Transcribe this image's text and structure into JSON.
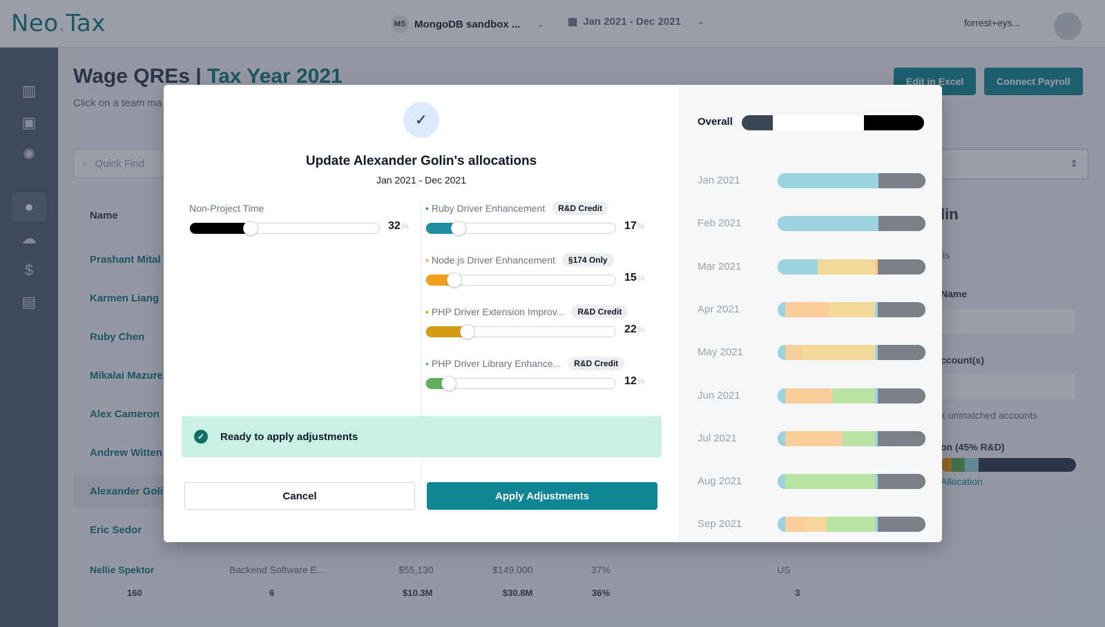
{
  "app": {
    "logo_main": "Neo",
    "logo_dot": ".",
    "logo_end": "Tax",
    "org_badge": "MS",
    "org_name": "MongoDB sandbox ...",
    "date_range": "Jan 2021 - Dec 2021",
    "user_email": "forrest+eys..."
  },
  "page": {
    "title_main": "Wage QREs | ",
    "title_year": "Tax Year 2021",
    "subtitle": "Click on a team ma",
    "edit_excel": "Edit in Excel",
    "connect_payroll": "Connect Payroll",
    "search_placeholder": "Quick Find",
    "name_header": "Name",
    "employees": [
      "Prashant Mital",
      "Karmen Liang",
      "Ruby Chen",
      "Mikalai Mazure",
      "Alex Cameron",
      "Andrew Witten",
      "Alexander Goli",
      "Eric Sedor"
    ],
    "last_row": {
      "name": "Nellie Spektor",
      "role": "Backend Software E...",
      "qre": "$55,130",
      "salary": "$149,000",
      "pct": "37%",
      "country": "US"
    },
    "totals": {
      "count": "160",
      "teams": "6",
      "qre": "$10.3M",
      "wages": "$30.8M",
      "avg": "36%",
      "countries": "3"
    },
    "right_panel": {
      "title": "lin",
      "details": "ils",
      "name_label": "Name",
      "accounts_label": "ccount(s)",
      "unmatched": "k unmatched accounts",
      "allocation_label": "on (45% R&D)",
      "allocation_link": "Allocation"
    }
  },
  "modal": {
    "title": "Update Alexander Golin's allocations",
    "subtitle": "Jan 2021 - Dec 2021",
    "non_project": {
      "label": "Non-Project Time",
      "value": "32",
      "fraction": 0.32
    },
    "projects": [
      {
        "label": "Ruby Driver Enhancement",
        "tag": "R&D Credit",
        "value": "17",
        "fraction": 0.17,
        "color": "#1f8ea3"
      },
      {
        "label": "Node.js Driver Enhancement",
        "tag": "§174 Only",
        "value": "15",
        "fraction": 0.15,
        "color": "#f0a01e"
      },
      {
        "label": "PHP Driver Extension Improv...",
        "tag": "R&D Credit",
        "value": "22",
        "fraction": 0.22,
        "color": "#d69a12"
      },
      {
        "label": "PHP Driver Library Enhance...",
        "tag": "R&D Credit",
        "value": "12",
        "fraction": 0.12,
        "color": "#5fb05a"
      }
    ],
    "unit": "%",
    "ready_text": "Ready to apply adjustments",
    "cancel": "Cancel",
    "apply": "Apply Adjustments",
    "overall_label": "Overall",
    "overall_segments": [
      {
        "color": "#3b4657",
        "fraction": 0.17
      },
      {
        "color": "#ffffff",
        "fraction": 0.5
      },
      {
        "color": "#000000",
        "fraction": 0.33
      }
    ],
    "months": [
      {
        "label": "Jan 2021",
        "segments": [
          {
            "color": "#9bd3de",
            "fraction": 0.68
          },
          {
            "color": "#7b7f86",
            "fraction": 0.32
          }
        ]
      },
      {
        "label": "Feb 2021",
        "segments": [
          {
            "color": "#9bd3de",
            "fraction": 0.68
          },
          {
            "color": "#7b7f86",
            "fraction": 0.32
          }
        ]
      },
      {
        "label": "Mar 2021",
        "segments": [
          {
            "color": "#9bd3de",
            "fraction": 0.27
          },
          {
            "color": "#f4d79a",
            "fraction": 0.39
          },
          {
            "color": "#f6c68a",
            "fraction": 0.02
          },
          {
            "color": "#7b7f86",
            "fraction": 0.32
          }
        ]
      },
      {
        "label": "Apr 2021",
        "segments": [
          {
            "color": "#9bd3de",
            "fraction": 0.05
          },
          {
            "color": "#fbcf9c",
            "fraction": 0.3
          },
          {
            "color": "#f4d79a",
            "fraction": 0.31
          },
          {
            "color": "#9bd3de",
            "fraction": 0.02
          },
          {
            "color": "#7b7f86",
            "fraction": 0.32
          }
        ]
      },
      {
        "label": "May 2021",
        "segments": [
          {
            "color": "#9bd3de",
            "fraction": 0.05
          },
          {
            "color": "#fbcf9c",
            "fraction": 0.12
          },
          {
            "color": "#f4d79a",
            "fraction": 0.49
          },
          {
            "color": "#9bd3de",
            "fraction": 0.02
          },
          {
            "color": "#7b7f86",
            "fraction": 0.32
          }
        ]
      },
      {
        "label": "Jun 2021",
        "segments": [
          {
            "color": "#9bd3de",
            "fraction": 0.05
          },
          {
            "color": "#fbcf9c",
            "fraction": 0.32
          },
          {
            "color": "#b9e3a4",
            "fraction": 0.29
          },
          {
            "color": "#9bd3de",
            "fraction": 0.02
          },
          {
            "color": "#7b7f86",
            "fraction": 0.32
          }
        ]
      },
      {
        "label": "Jul 2021",
        "segments": [
          {
            "color": "#9bd3de",
            "fraction": 0.05
          },
          {
            "color": "#fbcf9c",
            "fraction": 0.39
          },
          {
            "color": "#b9e3a4",
            "fraction": 0.22
          },
          {
            "color": "#9bd3de",
            "fraction": 0.02
          },
          {
            "color": "#7b7f86",
            "fraction": 0.32
          }
        ]
      },
      {
        "label": "Aug 2021",
        "segments": [
          {
            "color": "#9bd3de",
            "fraction": 0.05
          },
          {
            "color": "#b9e3a4",
            "fraction": 0.61
          },
          {
            "color": "#9bd3de",
            "fraction": 0.02
          },
          {
            "color": "#7b7f86",
            "fraction": 0.32
          }
        ]
      },
      {
        "label": "Sep 2021",
        "segments": [
          {
            "color": "#9bd3de",
            "fraction": 0.05
          },
          {
            "color": "#fbcf9c",
            "fraction": 0.15
          },
          {
            "color": "#f4d79a",
            "fraction": 0.13
          },
          {
            "color": "#b9e3a4",
            "fraction": 0.33
          },
          {
            "color": "#9bd3de",
            "fraction": 0.02
          },
          {
            "color": "#7b7f86",
            "fraction": 0.32
          }
        ]
      }
    ]
  }
}
